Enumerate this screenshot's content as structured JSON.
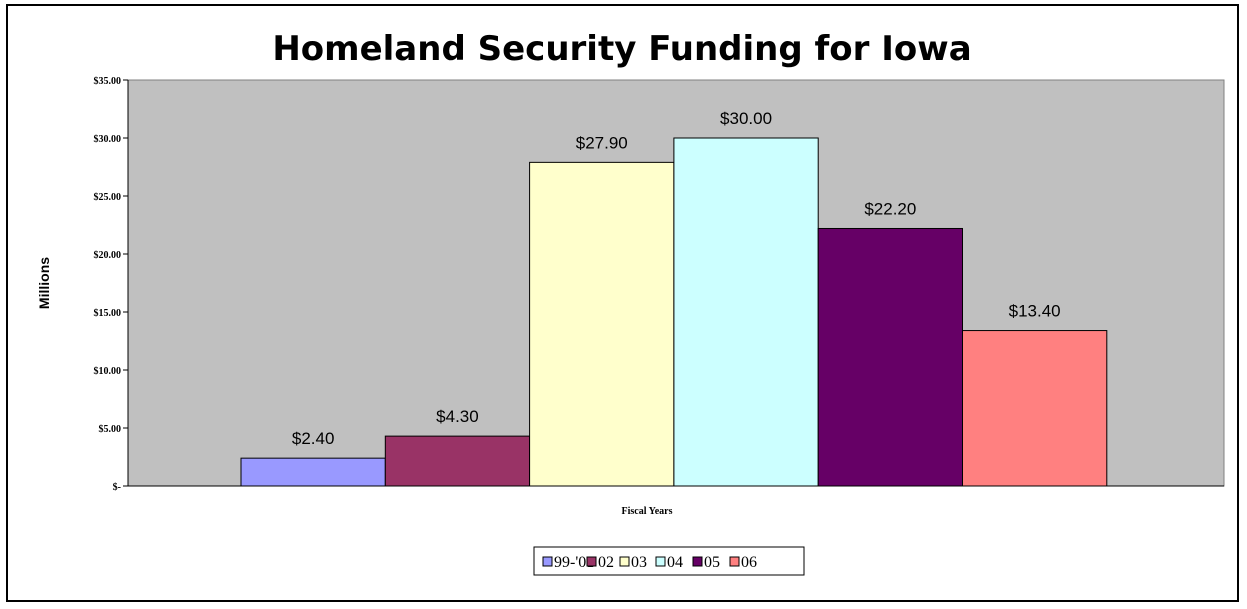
{
  "chart_data": {
    "type": "bar",
    "title": "Homeland Security Funding for Iowa",
    "ylabel": "Millions",
    "xlabel": "Fiscal Years",
    "ylim": [
      0,
      35
    ],
    "yticks": [
      0,
      5,
      10,
      15,
      20,
      25,
      30,
      35
    ],
    "ytick_labels": [
      "$-",
      "$5.00",
      "$10.00",
      "$15.00",
      "$20.00",
      "$25.00",
      "$30.00",
      "$35.00"
    ],
    "grid": false,
    "plot_background": "#c0c0c0",
    "legend_position": "bottom",
    "series": [
      {
        "name": "99-'01",
        "value": 2.4,
        "label": "$2.40",
        "color": "#9999ff"
      },
      {
        "name": "02",
        "value": 4.3,
        "label": "$4.30",
        "color": "#993366"
      },
      {
        "name": "03",
        "value": 27.9,
        "label": "$27.90",
        "color": "#ffffcc"
      },
      {
        "name": "04",
        "value": 30.0,
        "label": "$30.00",
        "color": "#ccffff"
      },
      {
        "name": "05",
        "value": 22.2,
        "label": "$22.20",
        "color": "#660066"
      },
      {
        "name": "06",
        "value": 13.4,
        "label": "$13.40",
        "color": "#ff8080"
      }
    ]
  }
}
